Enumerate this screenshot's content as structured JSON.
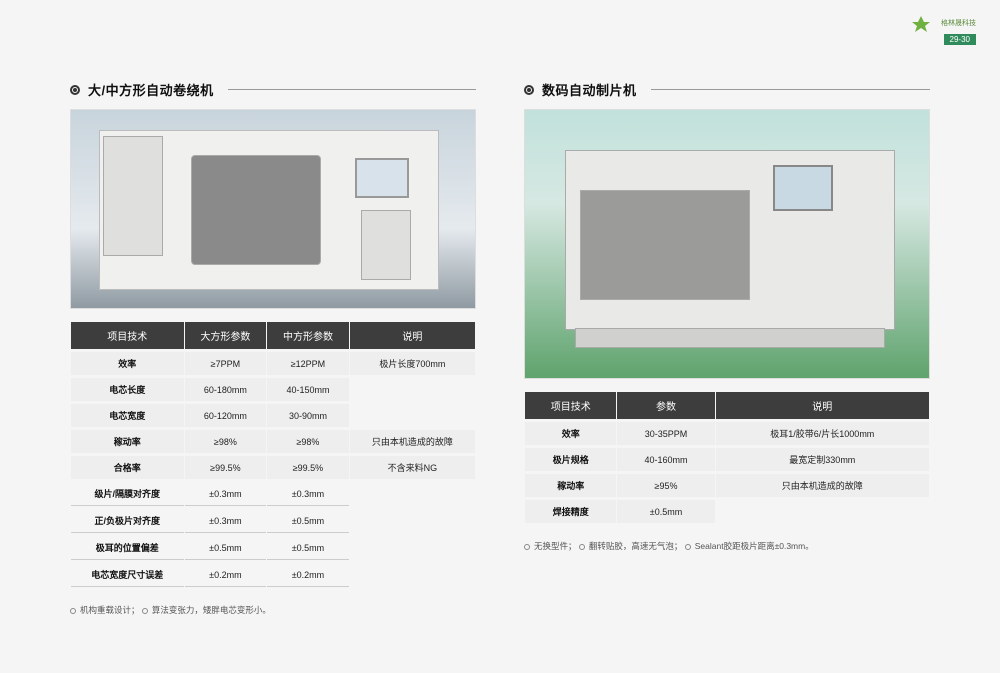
{
  "brand": {
    "name": "格林晟科技",
    "page": "29-30"
  },
  "left": {
    "title": "大/中方形自动卷绕机",
    "headers": [
      "项目技术",
      "大方形参数",
      "中方形参数",
      "说明"
    ],
    "rows": [
      {
        "label": "效率",
        "a": "≥7PPM",
        "b": "≥12PPM",
        "note": "极片长度700mm",
        "shaded": true
      },
      {
        "label": "电芯长度",
        "a": "60-180mm",
        "b": "40-150mm",
        "note": "",
        "shaded": true
      },
      {
        "label": "电芯宽度",
        "a": "60-120mm",
        "b": "30-90mm",
        "note": "",
        "shaded": true
      },
      {
        "label": "稼动率",
        "a": "≥98%",
        "b": "≥98%",
        "note": "只由本机造成的故障",
        "shaded": true
      },
      {
        "label": "合格率",
        "a": "≥99.5%",
        "b": "≥99.5%",
        "note": "不含来料NG",
        "shaded": true
      },
      {
        "label": "级片/隔膜对齐度",
        "a": "±0.3mm",
        "b": "±0.3mm",
        "note": "",
        "shaded": false
      },
      {
        "label": "正/负极片对齐度",
        "a": "±0.3mm",
        "b": "±0.5mm",
        "note": "",
        "shaded": false
      },
      {
        "label": "极耳的位置偏差",
        "a": "±0.5mm",
        "b": "±0.5mm",
        "note": "",
        "shaded": false
      },
      {
        "label": "电芯宽度尺寸误差",
        "a": "±0.2mm",
        "b": "±0.2mm",
        "note": "",
        "shaded": false
      }
    ],
    "footnote_parts": [
      "机构重载设计；",
      "算法变张力，矮胖电芯变形小。"
    ]
  },
  "right": {
    "title": "数码自动制片机",
    "headers": [
      "项目技术",
      "参数",
      "说明"
    ],
    "rows": [
      {
        "label": "效率",
        "a": "30-35PPM",
        "note": "极耳1/胶带6/片长1000mm"
      },
      {
        "label": "极片规格",
        "a": "40-160mm",
        "note": "最宽定制330mm"
      },
      {
        "label": "稼动率",
        "a": "≥95%",
        "note": "只由本机造成的故障"
      },
      {
        "label": "焊接精度",
        "a": "±0.5mm",
        "note": ""
      }
    ],
    "footnote_parts": [
      "无换型件；",
      "翻转贴胶，高速无气泡；",
      "Sealant胶距极片距离±0.3mm。"
    ]
  },
  "colors": {
    "header_bg": "#3d3d3d",
    "row_bg": "#eeeeee",
    "accent": "#2f8b5b"
  }
}
